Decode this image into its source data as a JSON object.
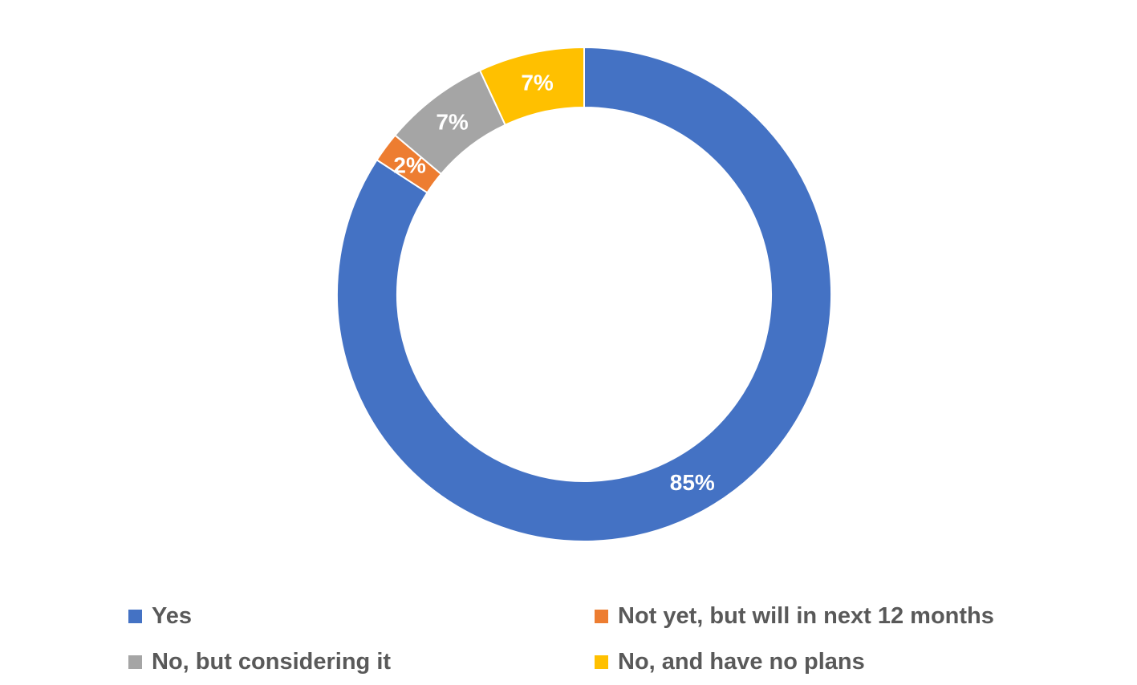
{
  "chart_data": {
    "type": "pie",
    "variant": "donut",
    "title": "",
    "categories": [
      "Yes",
      "Not yet, but will in next 12 months",
      "No, but considering it",
      "No, and have no plans"
    ],
    "values": [
      85,
      2,
      7,
      7
    ],
    "data_labels": [
      "85%",
      "2%",
      "7%",
      "7%"
    ],
    "colors": [
      "#4472C4",
      "#ED7D31",
      "#A5A5A5",
      "#FFC000"
    ],
    "legend_position": "bottom",
    "grid": false
  }
}
